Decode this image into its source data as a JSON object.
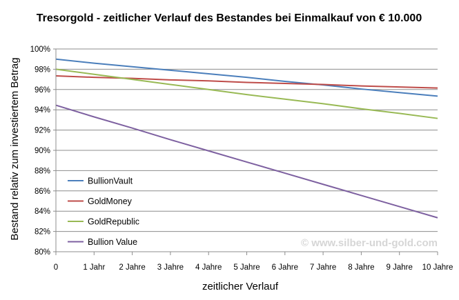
{
  "chart_data": {
    "type": "line",
    "title": "Tresorgold - zeitlicher Verlauf des Bestandes bei Einmalkauf von € 10.000",
    "xlabel": "zeitlicher Verlauf",
    "ylabel": "Bestand relativ zum investiertem Betrag",
    "categories": [
      "0",
      "1 Jahr",
      "2 Jahre",
      "3 Jahre",
      "4 Jahre",
      "5 Jahre",
      "6 Jahre",
      "7 Jahre",
      "8 Jahre",
      "9 Jahre",
      "10 Jahre"
    ],
    "x": [
      0,
      1,
      2,
      3,
      4,
      5,
      6,
      7,
      8,
      9,
      10
    ],
    "ylim": [
      80,
      100
    ],
    "yticks": [
      80,
      82,
      84,
      86,
      88,
      90,
      92,
      94,
      96,
      98,
      100
    ],
    "ytick_labels": [
      "80%",
      "82%",
      "84%",
      "86%",
      "88%",
      "90%",
      "92%",
      "94%",
      "96%",
      "98%",
      "100%"
    ],
    "grid": "horizontal",
    "legend": "bottom-left",
    "series": [
      {
        "name": "BullionVault",
        "color": "#4a7ebb",
        "values": [
          99.0,
          98.6,
          98.25,
          97.9,
          97.55,
          97.2,
          96.8,
          96.45,
          96.05,
          95.7,
          95.35
        ]
      },
      {
        "name": "GoldMoney",
        "color": "#be4b48",
        "values": [
          97.35,
          97.2,
          97.1,
          96.95,
          96.85,
          96.7,
          96.6,
          96.5,
          96.35,
          96.25,
          96.15
        ]
      },
      {
        "name": "GoldRepublic",
        "color": "#98b954",
        "values": [
          98.0,
          97.5,
          97.0,
          96.5,
          96.0,
          95.5,
          95.05,
          94.6,
          94.1,
          93.65,
          93.15
        ]
      },
      {
        "name": "Bullion Value",
        "color": "#7d60a0",
        "values": [
          94.45,
          93.3,
          92.2,
          91.05,
          89.95,
          88.85,
          87.75,
          86.65,
          85.55,
          84.45,
          83.35
        ]
      }
    ],
    "watermark": "© www.silber-und-gold.com"
  }
}
